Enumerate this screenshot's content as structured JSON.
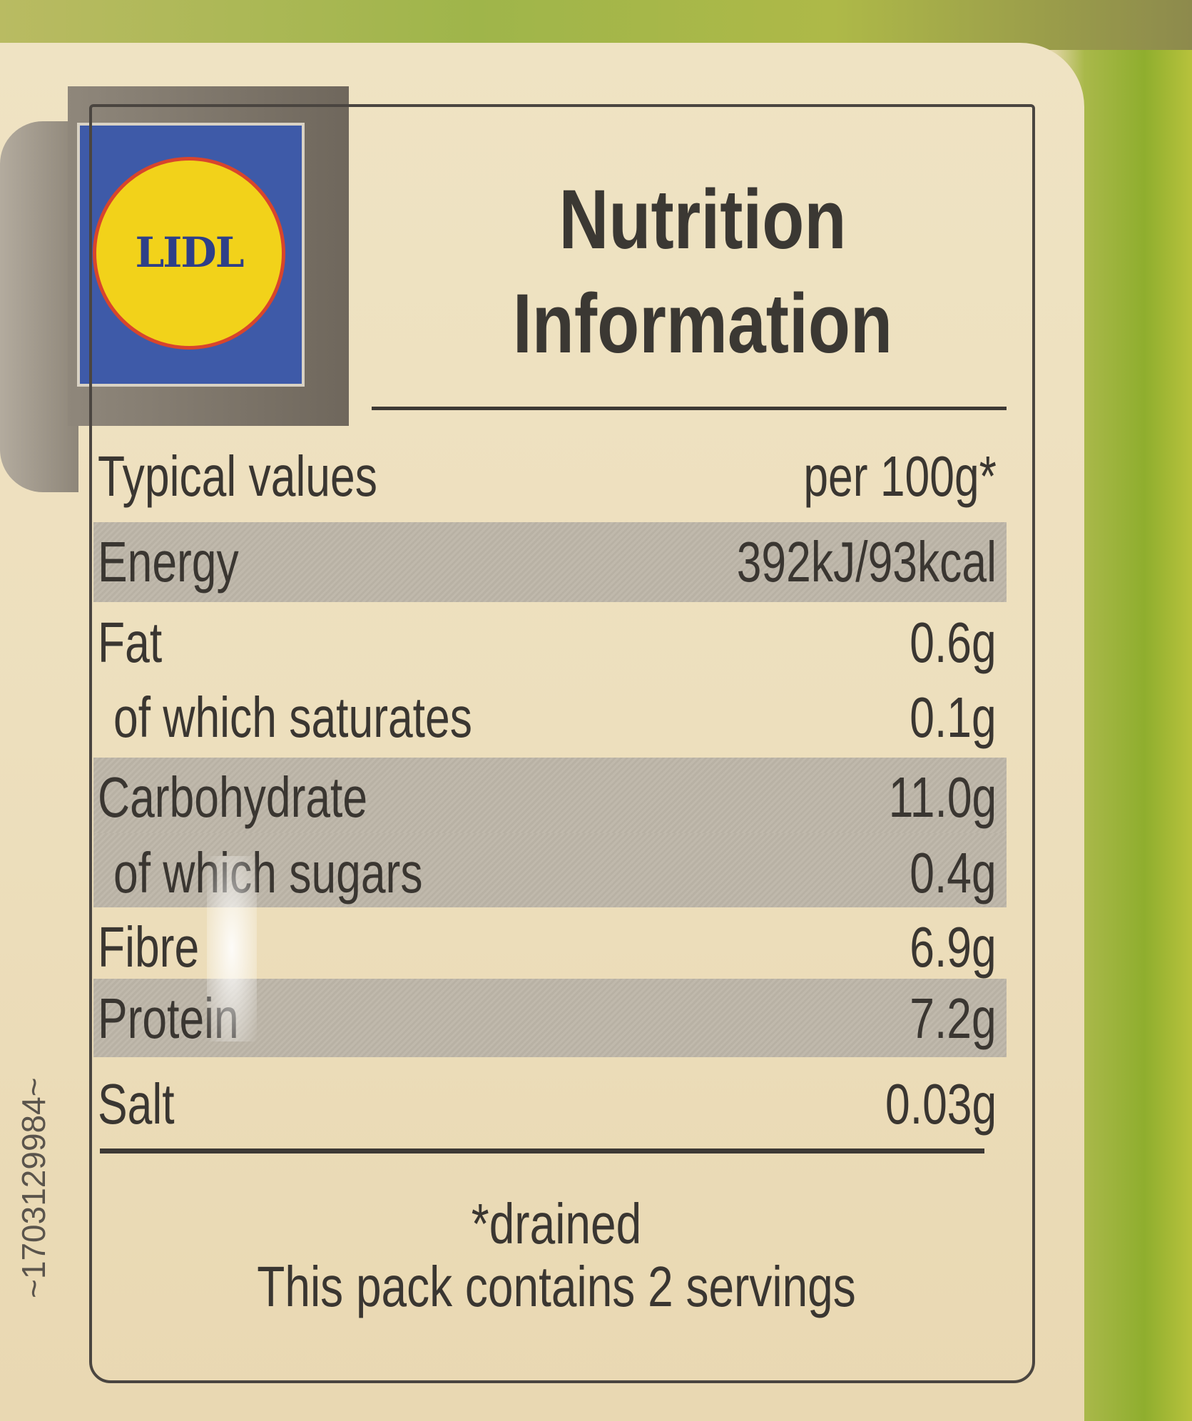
{
  "brand": {
    "logo_text": "LIDL",
    "colors": {
      "blue": "#3e5aa8",
      "yellow": "#f2d21a",
      "red": "#d8452c"
    }
  },
  "title": {
    "line1": "Nutrition",
    "line2": "Information"
  },
  "table": {
    "header": {
      "label": "Typical values",
      "value": "per 100g*"
    },
    "rows": [
      {
        "label": "Energy",
        "value": "392kJ/93kcal",
        "shaded": true
      },
      {
        "label": "Fat",
        "value": "0.6g",
        "shaded": false
      },
      {
        "label": "of which saturates",
        "value": "0.1g",
        "shaded": false
      },
      {
        "label": "Carbohydrate",
        "value": "11.0g",
        "shaded": true
      },
      {
        "label": "of which sugars",
        "value": "0.4g",
        "shaded": true
      },
      {
        "label": "Fibre",
        "value": "6.9g",
        "shaded": false
      },
      {
        "label": "Protein",
        "value": "7.2g",
        "shaded": true
      },
      {
        "label": "Salt",
        "value": "0.03g",
        "shaded": false
      }
    ]
  },
  "footer": {
    "note": "*drained",
    "servings": "This pack contains 2 servings"
  },
  "side_code": "~1703129984~"
}
